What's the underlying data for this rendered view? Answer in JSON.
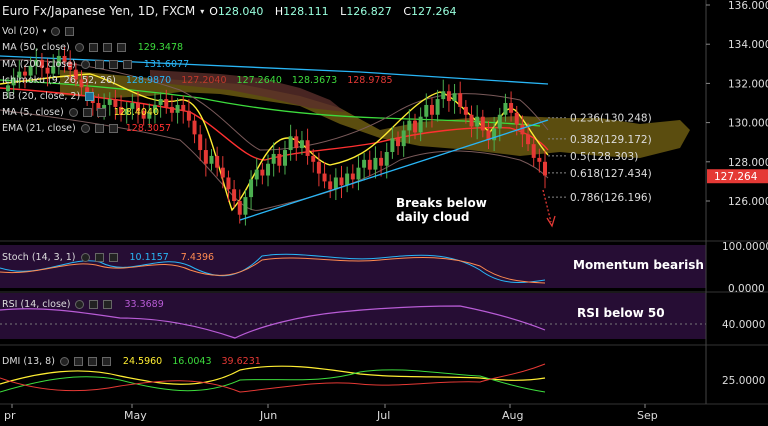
{
  "header": {
    "symbol": "Euro Fx/Japanese Yen, 1D, FXCM",
    "o_label": "O",
    "o_value": "128.040",
    "h_label": "H",
    "h_value": "128.111",
    "l_label": "L",
    "l_value": "126.827",
    "c_label": "C",
    "c_value": "127.264"
  },
  "legend": {
    "vol": "Vol (20)",
    "ma50": "MA (50, close)",
    "ma50_value": "129.3478",
    "ma200": "MA (200, close)",
    "ma200_value": "131.6077",
    "ichimoku": "Ichimoku (9, 26, 52, 26)",
    "ichimoku_values": [
      "128.9870",
      "127.2040",
      "127.2640",
      "128.3673",
      "128.9785"
    ],
    "bb": "BB (20, close, 2)",
    "ma5": "MA (5, close)",
    "ma5_value": "128.4040",
    "ema21": "EMA (21, close)",
    "ema21_value": "128.3057"
  },
  "annotations": {
    "breaks": "Breaks below",
    "breaks2": "daily cloud",
    "momentum": "Momentum bearish",
    "rsi_below": "RSI below 50"
  },
  "stoch": {
    "label": "Stoch (14, 3, 1)",
    "k": "10.1157",
    "d": "7.4396"
  },
  "rsi": {
    "label": "RSI (14, close)",
    "value": "33.3689"
  },
  "dmi": {
    "label": "DMI (13, 8)",
    "v1": "24.5960",
    "v2": "16.0043",
    "v3": "39.6231"
  },
  "colors": {
    "up": "#4caf50",
    "down": "#e53935",
    "cloud": "#6b5a12",
    "cloud_red": "#5a2e2a",
    "ma50": "#3ddc3d",
    "ma200": "#29b6f6",
    "bb": "#7a5a5a",
    "ma5": "#ffee33",
    "ema21": "#ff3030",
    "trend": "#29b6f6",
    "panel": "#2a0e3a"
  },
  "chart_data": {
    "type": "candlestick",
    "price_axis": [
      "136.000",
      "134.000",
      "132.000",
      "130.000",
      "128.000",
      "126.000"
    ],
    "last_price": "127.264",
    "x_labels": [
      "pr",
      "May",
      "Jun",
      "Jul",
      "Aug",
      "Sep"
    ],
    "fib_levels": [
      {
        "label": "0.236(130.248)",
        "value": 130.248
      },
      {
        "label": "0.382(129.172)",
        "value": 129.172
      },
      {
        "label": "0.5(128.303)",
        "value": 128.303
      },
      {
        "label": "0.618(127.434)",
        "value": 127.434
      },
      {
        "label": "0.786(126.196)",
        "value": 126.196
      }
    ],
    "stoch_axis": [
      "100.0000",
      "0.0000"
    ],
    "rsi_axis": [
      "40.0000"
    ],
    "dmi_axis": [
      "25.0000"
    ],
    "closes": [
      131.9,
      132.3,
      132.6,
      132.4,
      132.9,
      133.2,
      132.8,
      132.5,
      132.9,
      133.4,
      133.1,
      132.7,
      132.2,
      131.8,
      131.4,
      131.0,
      130.6,
      130.9,
      131.2,
      130.8,
      130.4,
      130.7,
      131.0,
      130.6,
      130.2,
      130.5,
      130.9,
      131.2,
      130.8,
      130.5,
      130.9,
      130.6,
      130.1,
      129.4,
      128.6,
      127.9,
      128.3,
      127.7,
      127.2,
      126.6,
      126.0,
      125.3,
      126.2,
      127.1,
      127.6,
      127.3,
      127.9,
      128.4,
      127.8,
      128.6,
      129.3,
      128.7,
      129.1,
      128.3,
      128.0,
      127.4,
      127.0,
      126.6,
      127.2,
      126.8,
      127.4,
      127.1,
      127.7,
      128.1,
      127.6,
      128.2,
      127.8,
      128.5,
      129.2,
      128.8,
      129.6,
      130.1,
      129.5,
      130.3,
      130.9,
      130.4,
      131.2,
      131.6,
      131.1,
      131.5,
      130.8,
      130.4,
      129.8,
      130.3,
      129.6,
      129.1,
      129.7,
      130.4,
      131.0,
      130.5,
      129.9,
      129.4,
      128.9,
      128.2,
      128.0,
      127.3
    ],
    "candle_count": 96
  }
}
